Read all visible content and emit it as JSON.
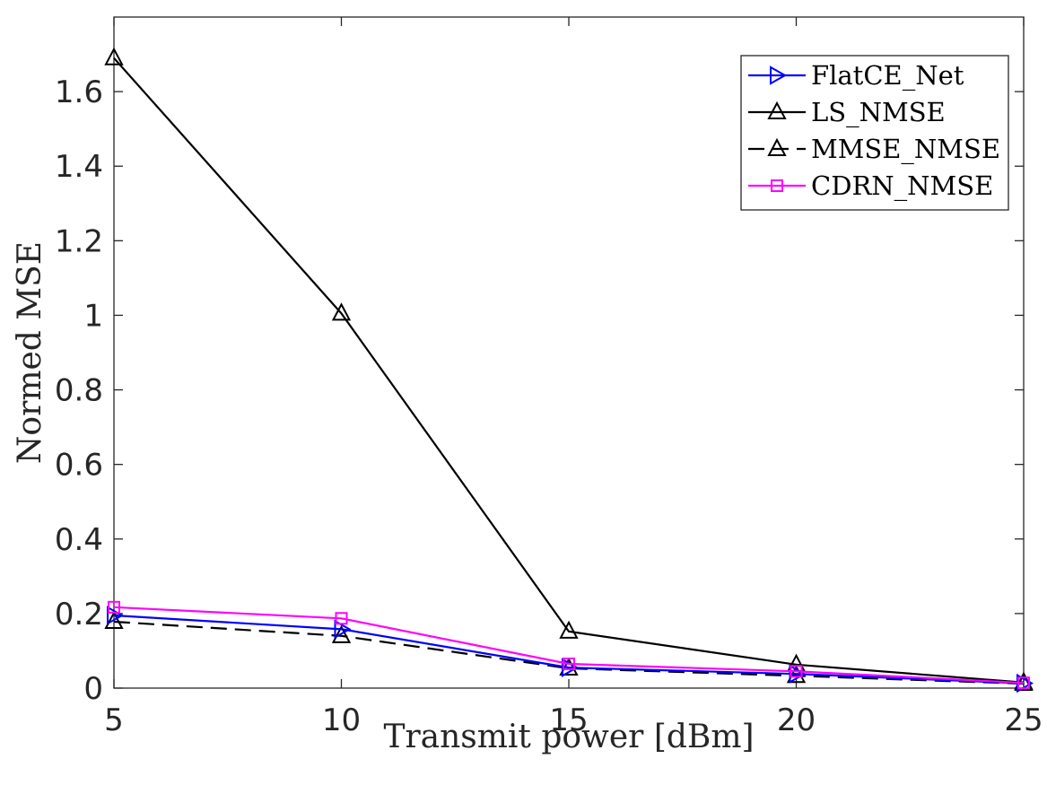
{
  "chart_data": {
    "type": "line",
    "title": "",
    "xlabel": "Transmit power [dBm]",
    "ylabel": "Normed MSE",
    "xlim": [
      5,
      25
    ],
    "ylim": [
      0,
      1.8
    ],
    "x_ticks": [
      5,
      10,
      15,
      20,
      25
    ],
    "x_tick_labels": [
      "5",
      "10",
      "15",
      "20",
      "25"
    ],
    "y_ticks": [
      0,
      0.2,
      0.4,
      0.6,
      0.8,
      1.0,
      1.2,
      1.4,
      1.6
    ],
    "y_tick_labels": [
      "0",
      "0.2",
      "0.4",
      "0.6",
      "0.8",
      "1",
      "1.2",
      "1.4",
      "1.6"
    ],
    "grid": false,
    "legend_position": "top-right",
    "x": [
      5,
      10,
      15,
      20,
      25
    ],
    "series": [
      {
        "name": "FlatCE_Net",
        "values": [
          0.195,
          0.158,
          0.055,
          0.038,
          0.013
        ],
        "color": "#0000ff",
        "dash": "solid",
        "marker": "triangle-right"
      },
      {
        "name": "LS_NMSE",
        "values": [
          1.69,
          1.005,
          0.152,
          0.063,
          0.015
        ],
        "color": "#000000",
        "dash": "solid",
        "marker": "triangle-up"
      },
      {
        "name": "MMSE_NMSE",
        "values": [
          0.178,
          0.14,
          0.053,
          0.033,
          0.012
        ],
        "color": "#000000",
        "dash": "dashed",
        "marker": "triangle-up"
      },
      {
        "name": "CDRN_NMSE",
        "values": [
          0.217,
          0.187,
          0.065,
          0.045,
          0.014
        ],
        "color": "#ff00ff",
        "dash": "solid",
        "marker": "square"
      }
    ]
  }
}
